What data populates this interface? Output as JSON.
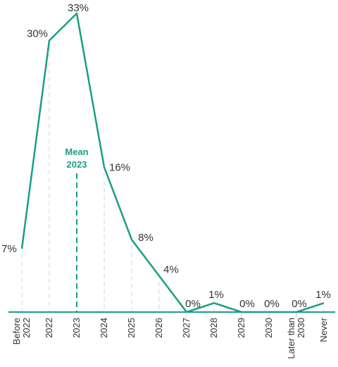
{
  "chart_data": {
    "type": "line",
    "categories": [
      [
        "Before",
        "2022"
      ],
      [
        "2022"
      ],
      [
        "2023"
      ],
      [
        "2024"
      ],
      [
        "2025"
      ],
      [
        "2026"
      ],
      [
        "2027"
      ],
      [
        "2028"
      ],
      [
        "2029"
      ],
      [
        "2030"
      ],
      [
        "Later than",
        "2030"
      ],
      [
        "Never"
      ]
    ],
    "values": [
      7,
      30,
      33,
      16,
      8,
      4,
      0,
      1,
      0,
      0,
      0,
      1
    ],
    "value_labels": [
      "7%",
      "30%",
      "33%",
      "16%",
      "8%",
      "4%",
      "0%",
      "1%",
      "0%",
      "0%",
      "0%",
      "1%"
    ],
    "ylim": [
      0,
      33
    ],
    "grid": "vertical dashed",
    "mean": {
      "title": "Mean",
      "value_label": "2023",
      "category_index": 2
    },
    "colors": {
      "line": "#1a9e85",
      "axis": "#1a9e85",
      "grid": "#d0d0d0",
      "mean": "#1a9e85",
      "text": "#333333"
    }
  }
}
